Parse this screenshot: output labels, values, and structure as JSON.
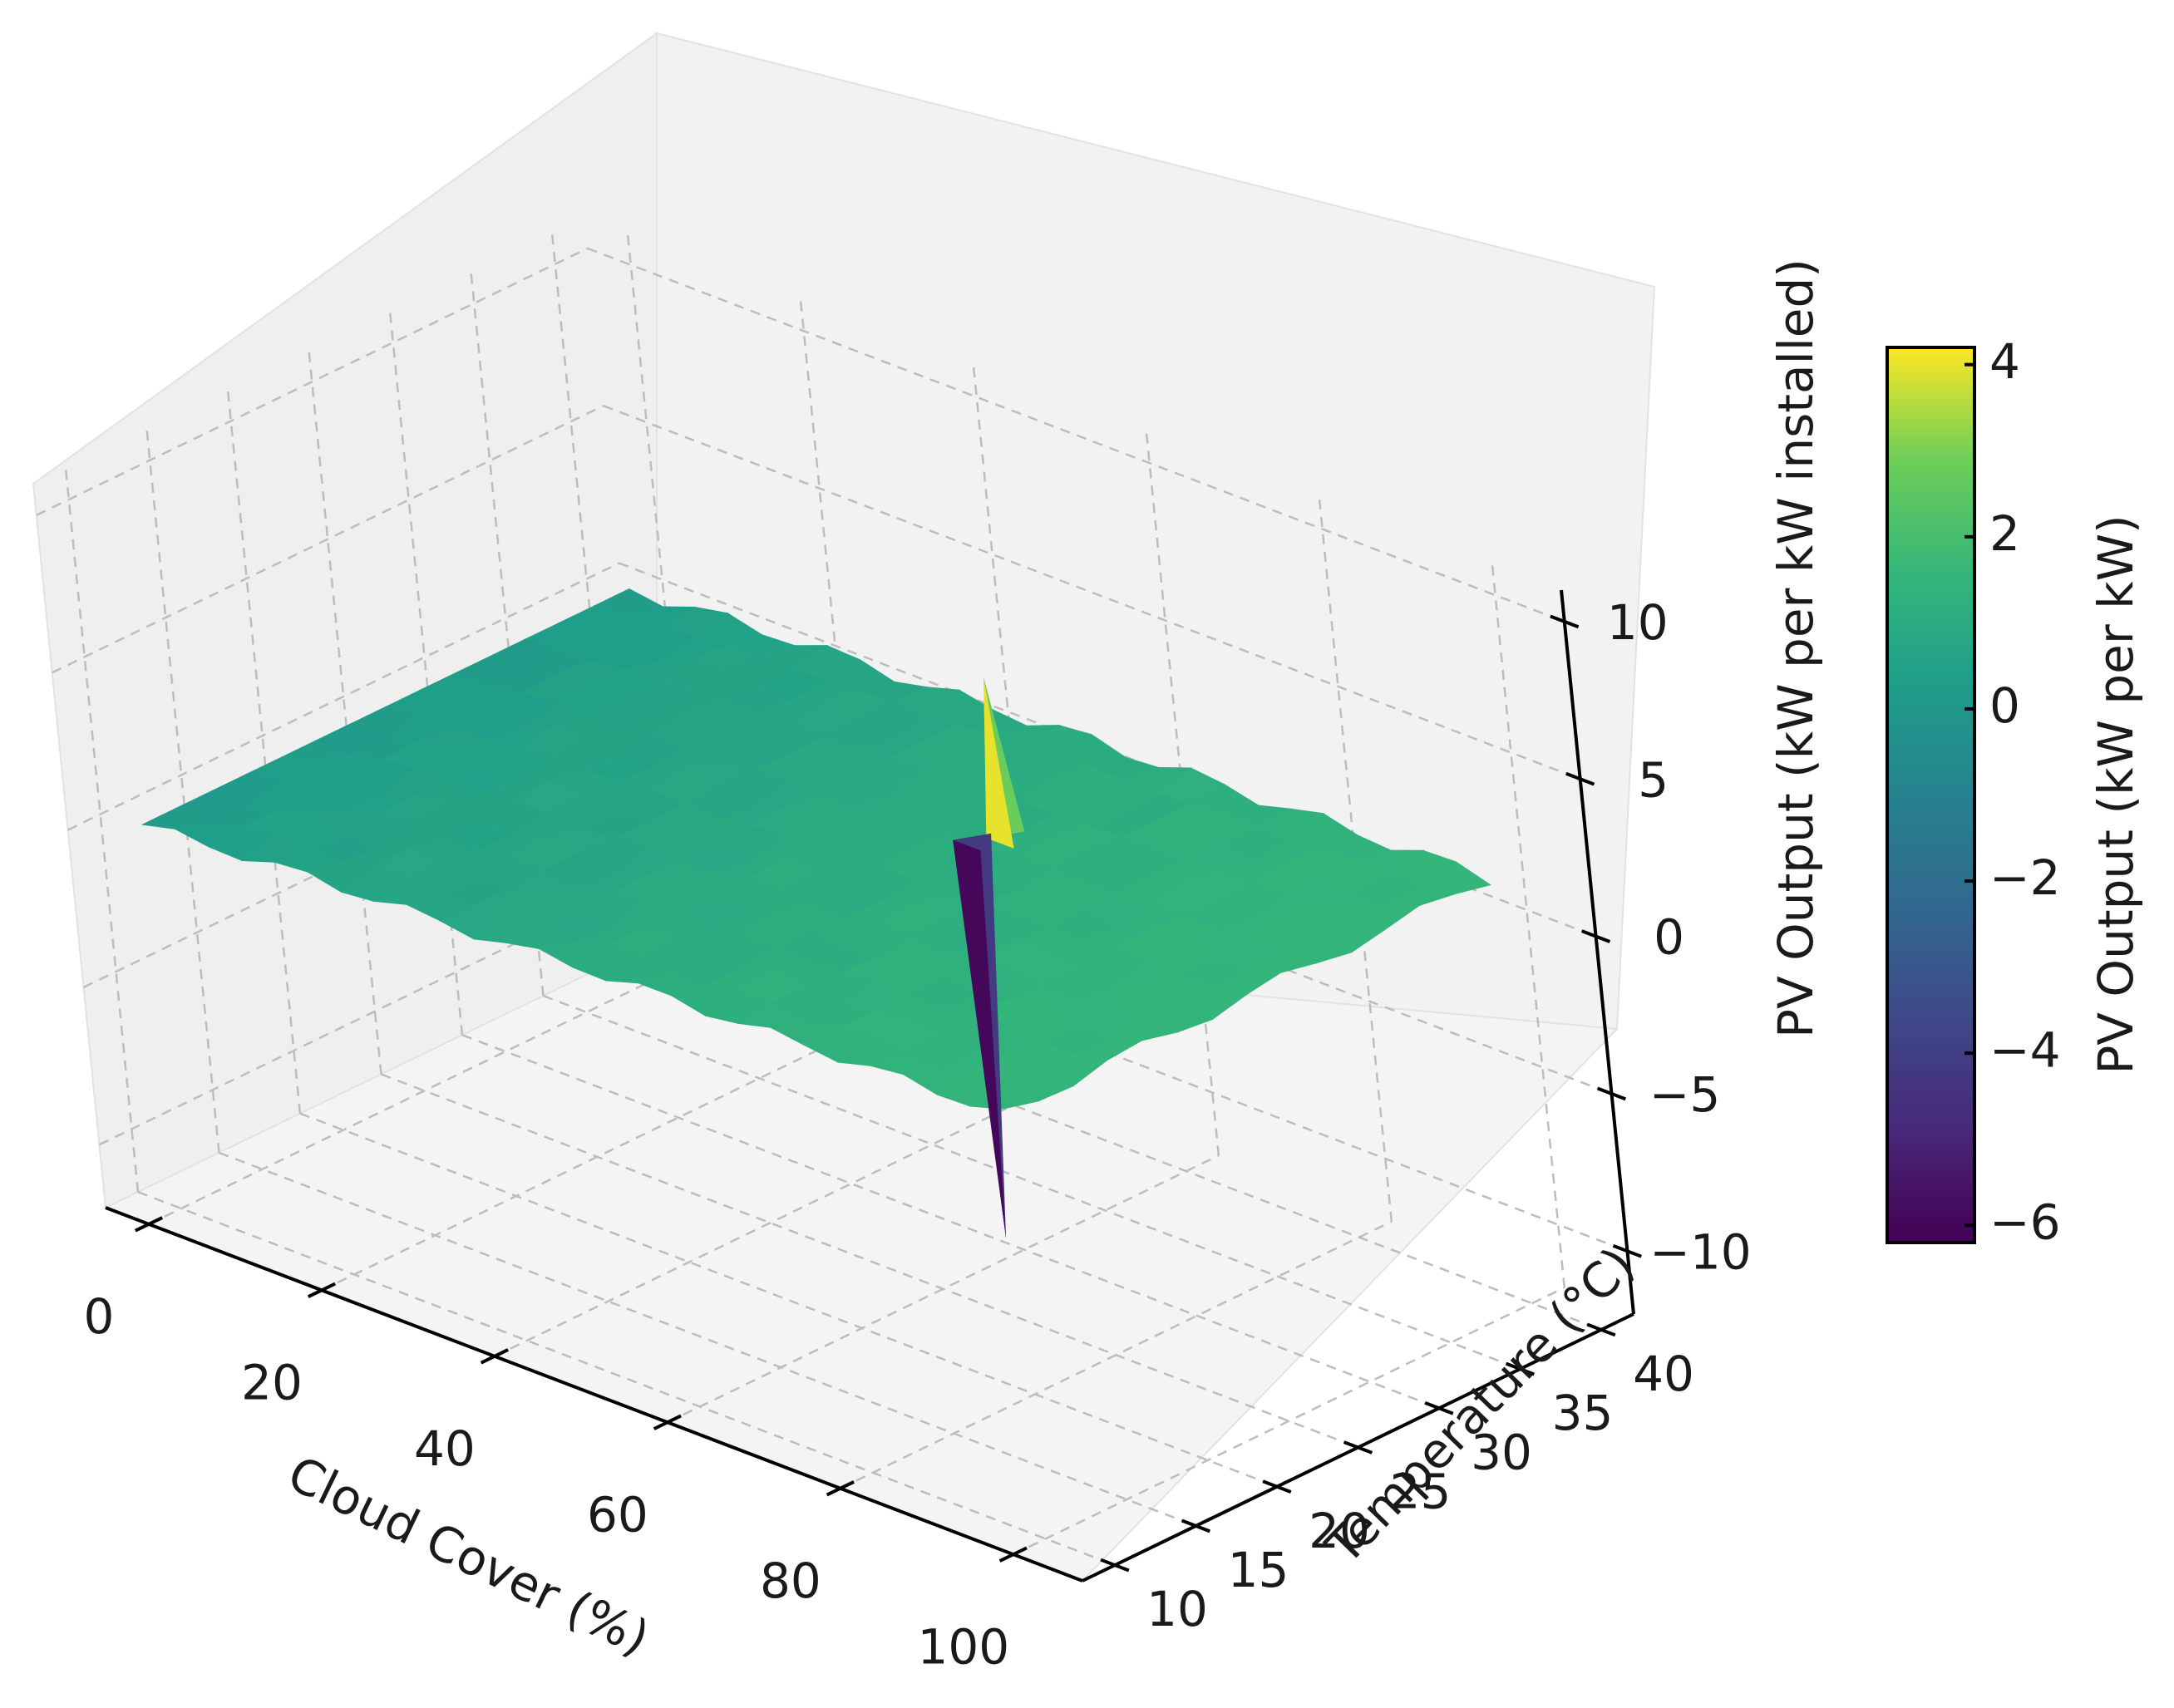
{
  "chart_data": {
    "type": "surface3d",
    "colormap": "viridis",
    "grid": true,
    "x_axis": {
      "label": "Cloud Cover (%)",
      "ticks": [
        0,
        20,
        40,
        60,
        80,
        100
      ],
      "range": [
        -5,
        108
      ]
    },
    "y_axis": {
      "label": "Temperature (°C)",
      "ticks": [
        10,
        15,
        20,
        25,
        30,
        35,
        40
      ],
      "range": [
        8,
        42
      ]
    },
    "z_axis": {
      "label": "PV Output (kW per kW installed)",
      "ticks": [
        -10,
        -5,
        0,
        5,
        10
      ],
      "tick_labels": [
        "−10",
        "−5",
        "0",
        "5",
        "10"
      ],
      "range": [
        -12,
        11
      ]
    },
    "colorbar": {
      "label": "PV Output (kW per kW)",
      "ticks": [
        -6,
        -4,
        -2,
        0,
        2,
        4
      ],
      "tick_labels": [
        "−6",
        "−4",
        "−2",
        "0",
        "2",
        "4"
      ],
      "range": [
        -6.2,
        4.2
      ],
      "placement": "right"
    },
    "surface_profile": {
      "cloud_cover": [
        0,
        10,
        20,
        30,
        40,
        50,
        60,
        70,
        80,
        90,
        100
      ],
      "temperature": [
        10,
        15,
        20,
        25,
        30,
        35,
        40
      ],
      "approx_output": [
        0.2,
        0.4,
        0.6,
        0.7,
        0.8,
        1.0,
        1.1,
        1.2,
        1.3,
        1.4,
        1.5
      ]
    },
    "peaks": [
      {
        "cloud_cover": 62,
        "temperature": 30,
        "output": 4.0
      },
      {
        "cloud_cover": 60,
        "temperature": 29,
        "output": -6.0
      }
    ]
  }
}
